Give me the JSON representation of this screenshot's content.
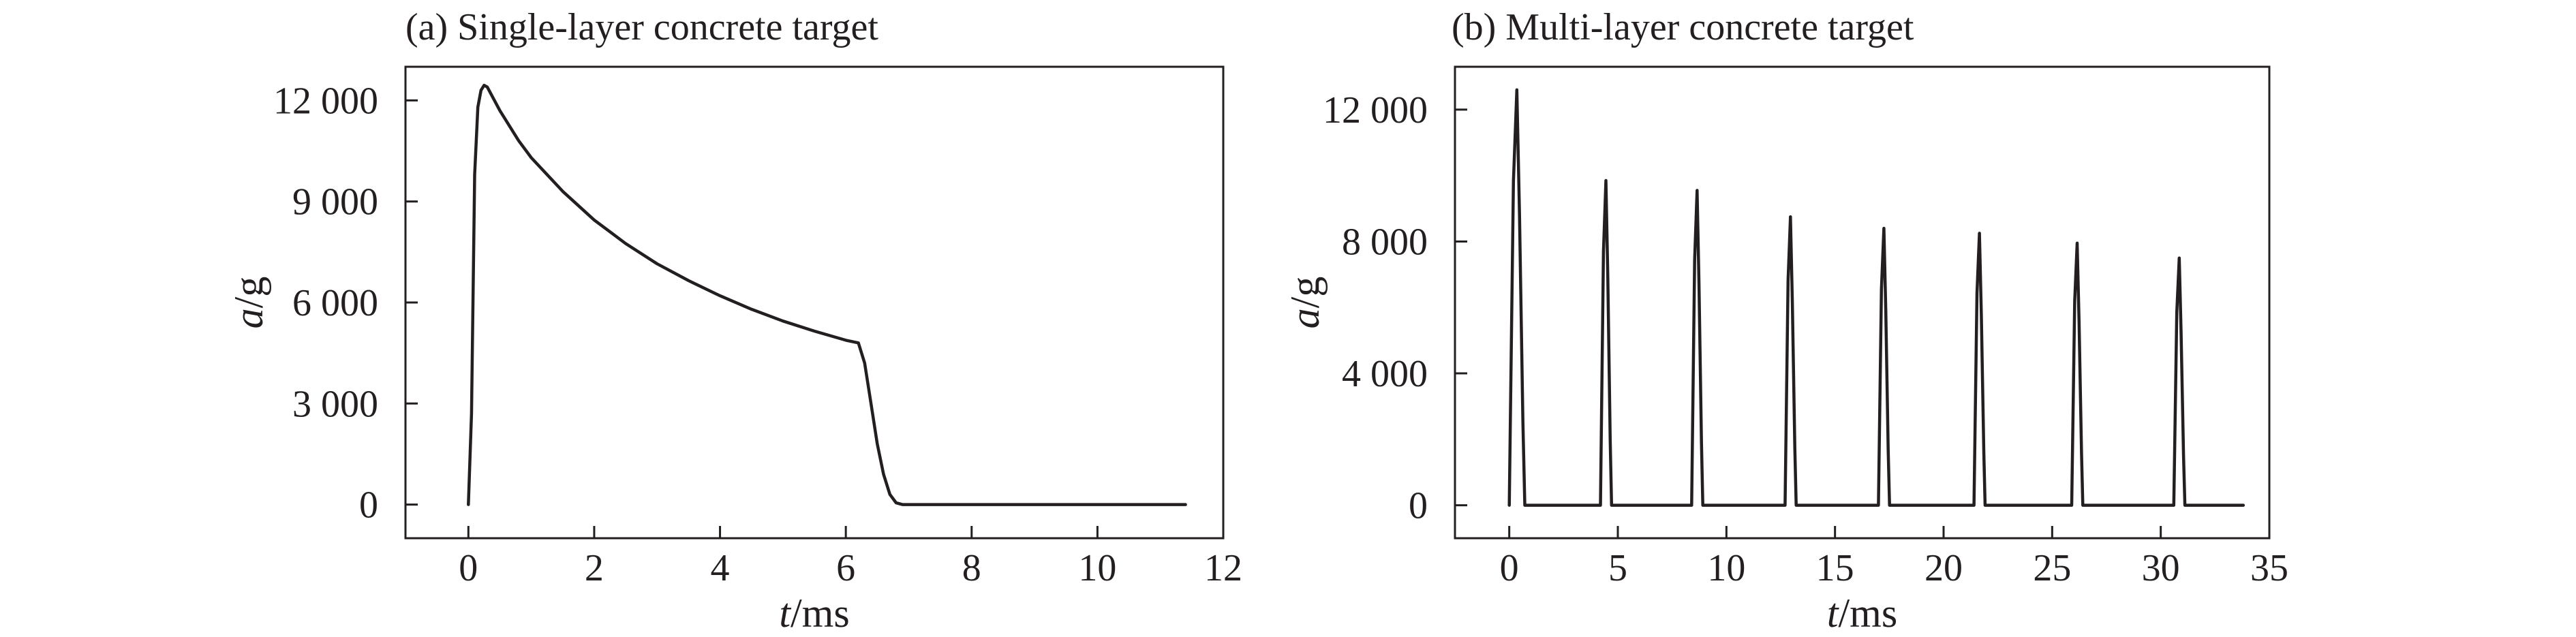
{
  "chart_data": [
    {
      "type": "line",
      "title": "(a) Single-layer concrete target",
      "xlabel": "t/ms",
      "xlabel_var": "t",
      "xlabel_unit": "/ms",
      "ylabel": "a/g",
      "ylabel_var": "a",
      "ylabel_unit": "/g",
      "xlim": [
        -1,
        12
      ],
      "ylim": [
        -1000,
        13000
      ],
      "xticks": [
        0,
        2,
        4,
        6,
        8,
        10,
        12
      ],
      "xtick_labels": [
        "0",
        "2",
        "4",
        "6",
        "8",
        "10",
        "12"
      ],
      "yticks": [
        0,
        3000,
        6000,
        9000,
        12000
      ],
      "ytick_labels": [
        "0",
        "3 000",
        "6 000",
        "9 000",
        "12 000"
      ],
      "grid": false,
      "series": [
        {
          "x": [
            0,
            0.05,
            0.1,
            0.15,
            0.2,
            0.25,
            0.3,
            0.5,
            0.8,
            1.0,
            1.5,
            2.0,
            2.5,
            3.0,
            3.5,
            4.0,
            4.5,
            5.0,
            5.5,
            6.0,
            6.2,
            6.3,
            6.4,
            6.5,
            6.6,
            6.7,
            6.8,
            6.9,
            7.0,
            8.0,
            9.0,
            10.0,
            11.4
          ],
          "y": [
            0,
            2700,
            9800,
            11800,
            12300,
            12450,
            12400,
            11700,
            10800,
            10300,
            9300,
            8450,
            7750,
            7150,
            6650,
            6200,
            5800,
            5450,
            5150,
            4880,
            4800,
            4200,
            3000,
            1800,
            900,
            300,
            50,
            0,
            0,
            0,
            0,
            0,
            0
          ]
        }
      ]
    },
    {
      "type": "line",
      "title": "(b) Multi-layer concrete target",
      "xlabel": "t/ms",
      "xlabel_var": "t",
      "xlabel_unit": "/ms",
      "ylabel": "a/g",
      "ylabel_var": "a",
      "ylabel_unit": "/g",
      "xlim": [
        -2.5,
        35
      ],
      "ylim": [
        -1000,
        13300
      ],
      "xticks": [
        0,
        5,
        10,
        15,
        20,
        25,
        30,
        35
      ],
      "xtick_labels": [
        "0",
        "5",
        "10",
        "15",
        "20",
        "25",
        "30",
        "35"
      ],
      "yticks": [
        0,
        4000,
        8000,
        12000
      ],
      "ytick_labels": [
        "0",
        "4 000",
        "8 000",
        "12 000"
      ],
      "grid": false,
      "pulses": [
        {
          "start": 0.0,
          "peak_t": 0.35,
          "peak": 12600
        },
        {
          "start": 4.2,
          "peak_t": 4.45,
          "peak": 9850
        },
        {
          "start": 8.4,
          "peak_t": 8.65,
          "peak": 9550
        },
        {
          "start": 12.7,
          "peak_t": 12.95,
          "peak": 8750
        },
        {
          "start": 17.0,
          "peak_t": 17.25,
          "peak": 8400
        },
        {
          "start": 21.4,
          "peak_t": 21.65,
          "peak": 8250
        },
        {
          "start": 25.9,
          "peak_t": 26.15,
          "peak": 7950
        },
        {
          "start": 30.6,
          "peak_t": 30.85,
          "peak": 7500
        }
      ],
      "x_end": 33.8
    }
  ]
}
